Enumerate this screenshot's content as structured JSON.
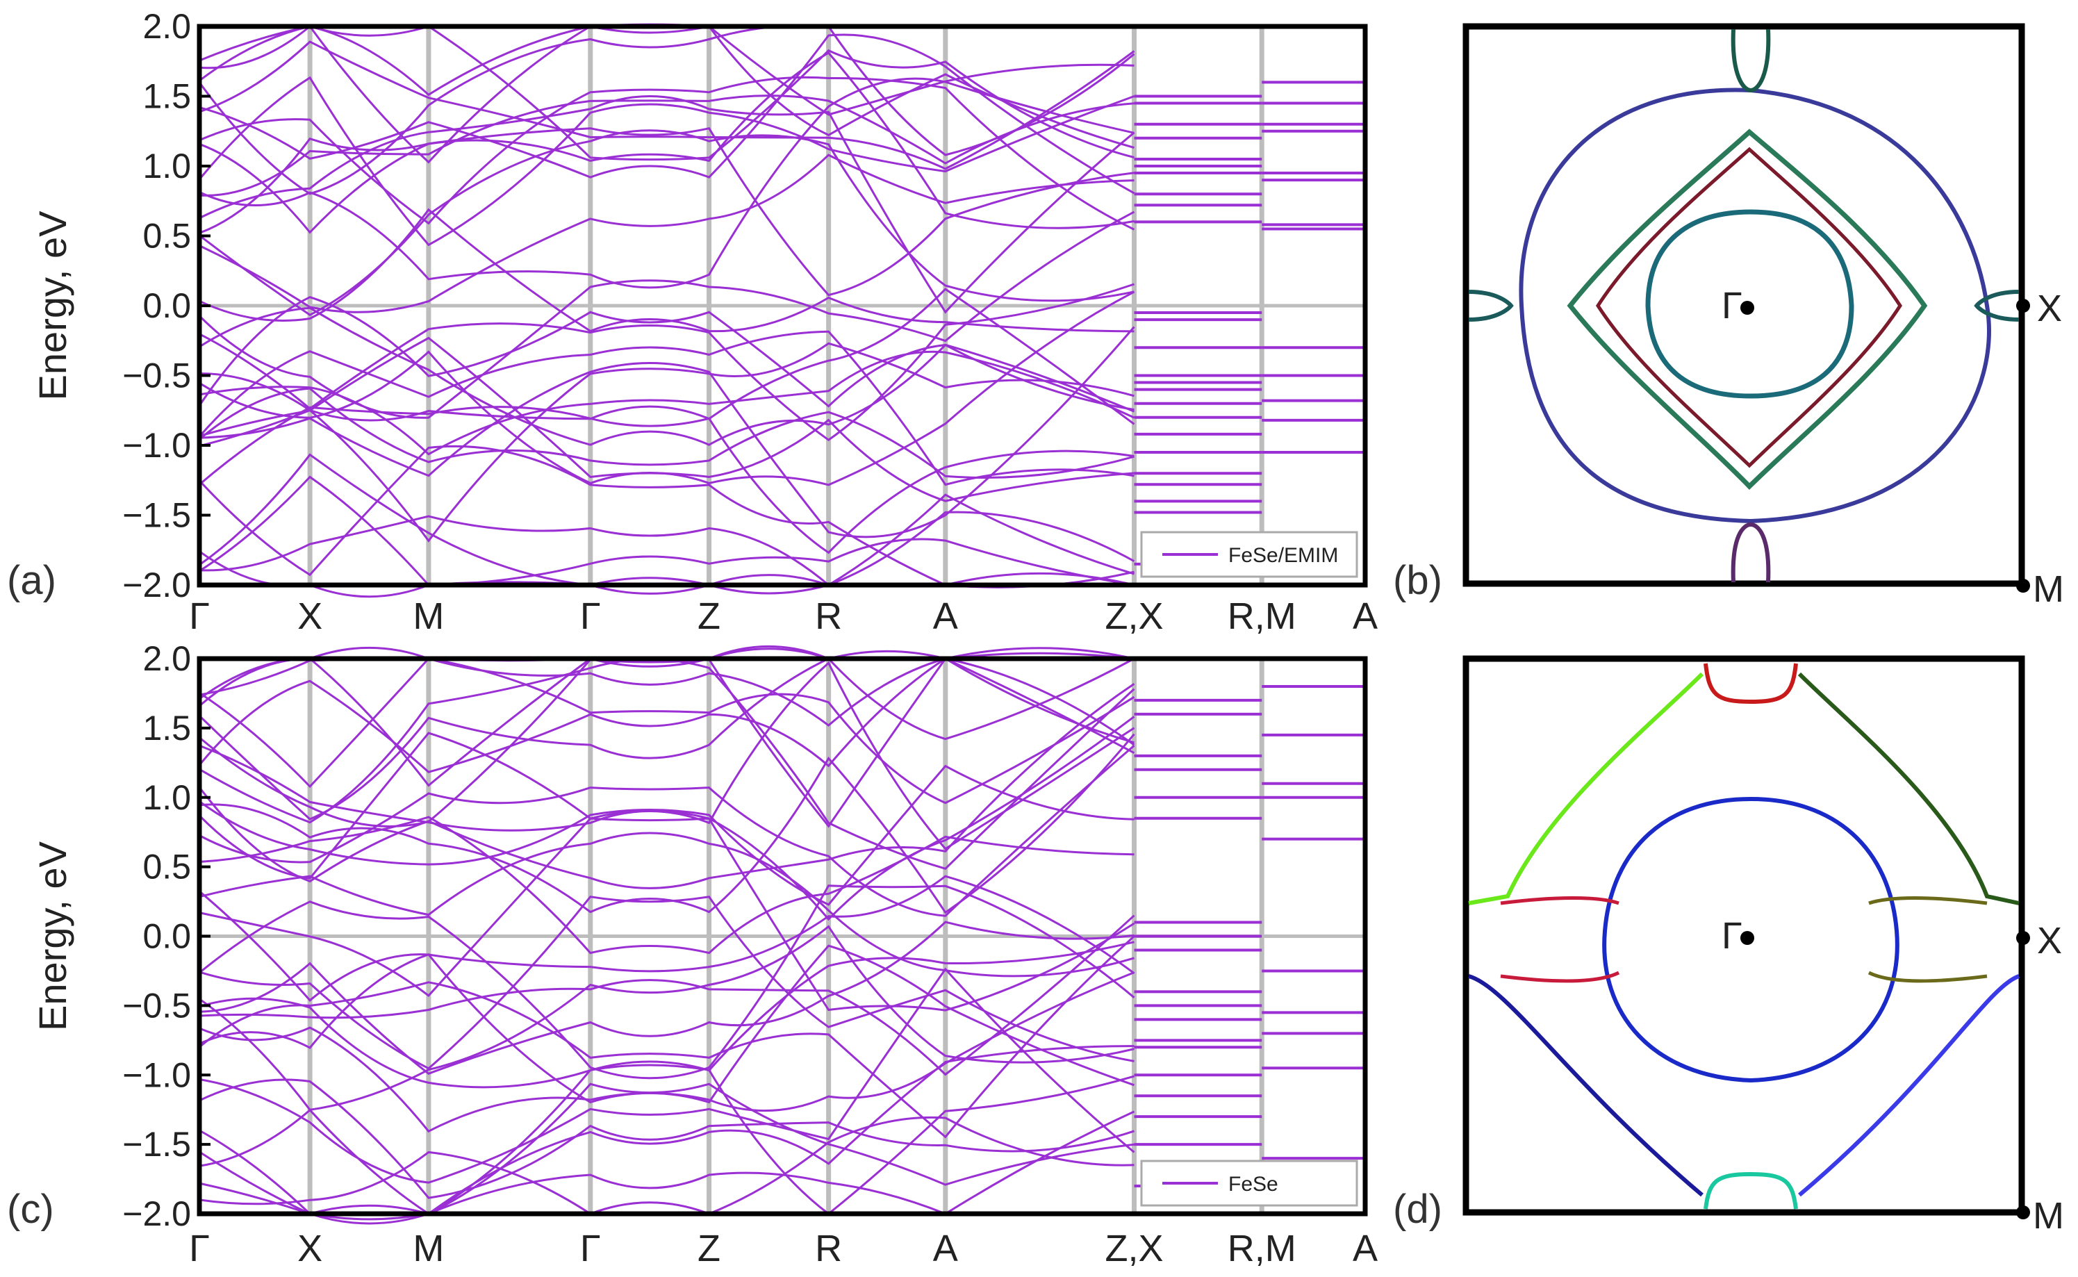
{
  "chart_data": [
    {
      "panel": "(a)",
      "type": "line",
      "ylabel": "Energy, eV",
      "ylim": [
        -2.0,
        2.0
      ],
      "yticks": [
        "2.0",
        "1.5",
        "1.0",
        "0.5",
        "0.0",
        "−0.5",
        "−1.0",
        "−1.5",
        "−2.0"
      ],
      "kpoints": [
        "Γ",
        "X",
        "M",
        "Γ",
        "Z",
        "R",
        "A",
        "Z,X",
        "R,M",
        "A"
      ],
      "legend": "FeSe/EMIM",
      "legend_position": "bottom-right",
      "series_color": "#9a2fd4",
      "grid_color": "#bdbdbd",
      "flat_levels_zx_rm": [
        1.5,
        1.45,
        1.3,
        1.2,
        1.05,
        1.0,
        0.95,
        0.8,
        0.72,
        0.6,
        -0.05,
        -0.1,
        -0.3,
        -0.5,
        -0.55,
        -0.6,
        -0.7,
        -0.8,
        -0.92,
        -1.05,
        -1.2,
        -1.28,
        -1.4,
        -1.48,
        -1.85
      ],
      "flat_levels_rm_a": [
        1.6,
        1.45,
        1.3,
        1.25,
        0.95,
        0.9,
        0.58,
        0.55,
        -0.3,
        -0.5,
        -0.68,
        -0.82,
        -1.05
      ]
    },
    {
      "panel": "(b)",
      "type": "diagram",
      "labels": [
        "Γ",
        "X",
        "M"
      ]
    },
    {
      "panel": "(c)",
      "type": "line",
      "ylabel": "Energy, eV",
      "ylim": [
        -2.0,
        2.0
      ],
      "yticks": [
        "2.0",
        "1.5",
        "1.0",
        "0.5",
        "0.0",
        "−0.5",
        "−1.0",
        "−1.5",
        "−2.0"
      ],
      "kpoints": [
        "Γ",
        "X",
        "M",
        "Γ",
        "Z",
        "R",
        "A",
        "Z,X",
        "R,M",
        "A"
      ],
      "legend": "FeSe",
      "legend_position": "bottom-right",
      "series_color": "#9a2fd4",
      "grid_color": "#bdbdbd",
      "flat_levels_zx_rm": [
        1.7,
        1.6,
        1.3,
        1.2,
        1.0,
        0.85,
        0.1,
        0.0,
        -0.1,
        -0.4,
        -0.5,
        -0.6,
        -0.75,
        -0.8,
        -1.0,
        -1.15,
        -1.3,
        -1.5,
        -1.8
      ],
      "flat_levels_rm_a": [
        1.8,
        1.45,
        1.1,
        1.0,
        0.7,
        -0.25,
        -0.55,
        -0.7,
        -0.95,
        -1.6
      ]
    },
    {
      "panel": "(d)",
      "type": "diagram",
      "labels": [
        "Γ",
        "X",
        "M"
      ]
    }
  ]
}
